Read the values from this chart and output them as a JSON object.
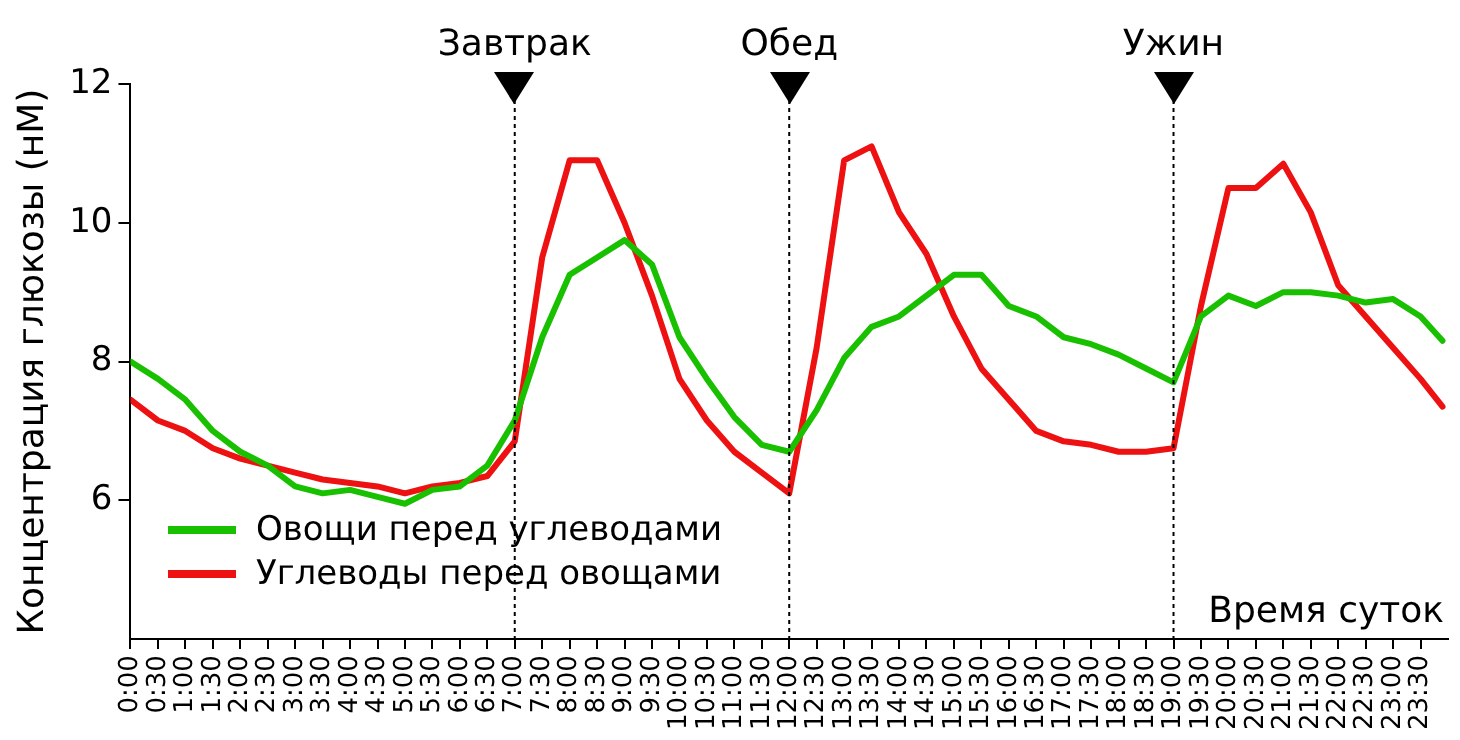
{
  "chart_data": {
    "type": "line",
    "xlabel": "Время суток",
    "ylabel": "Концентрация глюкозы (нМ)",
    "x": [
      0,
      0.5,
      1,
      1.5,
      2,
      2.5,
      3,
      3.5,
      4,
      4.5,
      5,
      5.5,
      6,
      6.5,
      7,
      7.5,
      8,
      8.5,
      9,
      9.5,
      10,
      10.5,
      11,
      11.5,
      12,
      12.5,
      13,
      13.5,
      14,
      14.5,
      15,
      15.5,
      16,
      16.5,
      17,
      17.5,
      18,
      18.5,
      19,
      19.5,
      20,
      20.5,
      21,
      21.5,
      22,
      22.5,
      23,
      23.5,
      23.9
    ],
    "series": [
      {
        "name": "Овощи перед углеводами",
        "color": "#19c000",
        "values": [
          8.0,
          7.75,
          7.45,
          7.0,
          6.7,
          6.5,
          6.2,
          6.1,
          6.15,
          6.05,
          5.95,
          6.15,
          6.2,
          6.5,
          7.15,
          8.35,
          9.25,
          9.5,
          9.75,
          9.4,
          8.35,
          7.75,
          7.2,
          6.8,
          6.7,
          7.3,
          8.05,
          8.5,
          8.65,
          8.95,
          9.25,
          9.25,
          8.8,
          8.65,
          8.35,
          8.25,
          8.1,
          7.9,
          7.7,
          8.65,
          8.95,
          8.8,
          9.0,
          9.0,
          8.95,
          8.85,
          8.9,
          8.65,
          8.3
        ]
      },
      {
        "name": "Углеводы перед овощами",
        "color": "#ee1111",
        "values": [
          7.45,
          7.15,
          7.0,
          6.75,
          6.6,
          6.5,
          6.4,
          6.3,
          6.25,
          6.2,
          6.1,
          6.2,
          6.25,
          6.35,
          6.85,
          9.5,
          10.9,
          10.9,
          10.0,
          8.95,
          7.75,
          7.15,
          6.7,
          6.4,
          6.1,
          8.2,
          10.9,
          11.1,
          10.15,
          9.55,
          8.65,
          7.9,
          7.45,
          7.0,
          6.85,
          6.8,
          6.7,
          6.7,
          6.75,
          8.8,
          10.5,
          10.5,
          10.85,
          10.15,
          9.1,
          8.65,
          8.2,
          7.75,
          7.35
        ]
      }
    ],
    "xlim": [
      0,
      24
    ],
    "xticks": [
      {
        "value": 0,
        "label": "0:00"
      },
      {
        "value": 0.5,
        "label": "0:30"
      },
      {
        "value": 1,
        "label": "1:00"
      },
      {
        "value": 1.5,
        "label": "1:30"
      },
      {
        "value": 2,
        "label": "2:00"
      },
      {
        "value": 2.5,
        "label": "2:30"
      },
      {
        "value": 3,
        "label": "3:00"
      },
      {
        "value": 3.5,
        "label": "3:30"
      },
      {
        "value": 4,
        "label": "4:00"
      },
      {
        "value": 4.5,
        "label": "4:30"
      },
      {
        "value": 5,
        "label": "5:00"
      },
      {
        "value": 5.5,
        "label": "5:30"
      },
      {
        "value": 6,
        "label": "6:00"
      },
      {
        "value": 6.5,
        "label": "6:30"
      },
      {
        "value": 7,
        "label": "7:00"
      },
      {
        "value": 7.5,
        "label": "7:30"
      },
      {
        "value": 8,
        "label": "8:00"
      },
      {
        "value": 8.5,
        "label": "8:30"
      },
      {
        "value": 9,
        "label": "9:00"
      },
      {
        "value": 9.5,
        "label": "9:30"
      },
      {
        "value": 10,
        "label": "10:00"
      },
      {
        "value": 10.5,
        "label": "10:30"
      },
      {
        "value": 11,
        "label": "11:00"
      },
      {
        "value": 11.5,
        "label": "11:30"
      },
      {
        "value": 12,
        "label": "12:00"
      },
      {
        "value": 12.5,
        "label": "12:30"
      },
      {
        "value": 13,
        "label": "13:00"
      },
      {
        "value": 13.5,
        "label": "13:30"
      },
      {
        "value": 14,
        "label": "14:00"
      },
      {
        "value": 14.5,
        "label": "14:30"
      },
      {
        "value": 15,
        "label": "15:00"
      },
      {
        "value": 15.5,
        "label": "15:30"
      },
      {
        "value": 16,
        "label": "16:00"
      },
      {
        "value": 16.5,
        "label": "16:30"
      },
      {
        "value": 17,
        "label": "17:00"
      },
      {
        "value": 17.5,
        "label": "17:30"
      },
      {
        "value": 18,
        "label": "18:00"
      },
      {
        "value": 18.5,
        "label": "18:30"
      },
      {
        "value": 19,
        "label": "19:00"
      },
      {
        "value": 19.5,
        "label": "19:30"
      },
      {
        "value": 20,
        "label": "20:00"
      },
      {
        "value": 20.5,
        "label": "20:30"
      },
      {
        "value": 21,
        "label": "21:00"
      },
      {
        "value": 21.5,
        "label": "21:30"
      },
      {
        "value": 22,
        "label": "22:00"
      },
      {
        "value": 22.5,
        "label": "22:30"
      },
      {
        "value": 23,
        "label": "23:00"
      },
      {
        "value": 23.5,
        "label": "23:30"
      }
    ],
    "ylim": [
      4,
      12
    ],
    "yticks": [
      6,
      8,
      10,
      12
    ],
    "ref_lines": [
      {
        "axis": "x",
        "value": 7,
        "label": "Завтрак",
        "color": "#000000",
        "line_style": "dotted"
      },
      {
        "axis": "x",
        "value": 12,
        "label": "Обед",
        "color": "#000000",
        "line_style": "dotted"
      },
      {
        "axis": "x",
        "value": 19,
        "label": "Ужин",
        "color": "#000000",
        "line_style": "dotted"
      }
    ],
    "grid": false,
    "legend": "bottom left",
    "marker": "none",
    "line_style": "solid"
  }
}
